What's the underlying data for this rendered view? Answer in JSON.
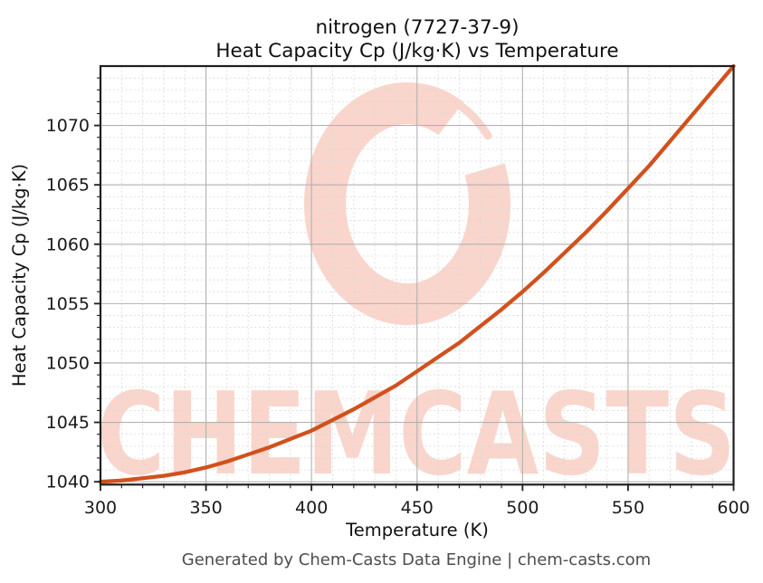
{
  "title_line1": "nitrogen (7727-37-9)",
  "title_line2": "Heat Capacity Cp (J/kg·K) vs Temperature",
  "footer": "Generated by Chem-Casts Data Engine | chem-casts.com",
  "watermark": {
    "text": "CHEMCASTS",
    "logo": "c-swoosh-logo",
    "color": "#f9d5cb"
  },
  "colors": {
    "curve": "#d1511d",
    "major_grid": "#b2b2b2",
    "minor_grid": "#dcdcdc",
    "spine": "#1f1f1f",
    "tick_label": "#1a1a1a",
    "title_text": "#111111",
    "footer_text": "#4d4d4d",
    "background": "#ffffff"
  },
  "chart_data": {
    "type": "line",
    "title": "nitrogen (7727-37-9) — Heat Capacity Cp (J/kg·K) vs Temperature",
    "xlabel": "Temperature (K)",
    "ylabel": "Heat Capacity Cp (J/kg·K)",
    "xlim": [
      300,
      600
    ],
    "ylim": [
      1039.76,
      1075.0
    ],
    "x_major_ticks": [
      300,
      350,
      400,
      450,
      500,
      550,
      600
    ],
    "y_major_ticks": [
      1040,
      1045,
      1050,
      1055,
      1060,
      1065,
      1070
    ],
    "x_minor_step": 10,
    "y_minor_step": 1,
    "grid": "major+minor",
    "legend": "none",
    "series": [
      {
        "name": "Heat Capacity Cp",
        "x": [
          300,
          310,
          320,
          330,
          340,
          350,
          360,
          370,
          380,
          390,
          400,
          410,
          420,
          430,
          440,
          450,
          460,
          470,
          480,
          490,
          500,
          510,
          520,
          530,
          540,
          550,
          560,
          570,
          580,
          590,
          600
        ],
        "y": [
          1040.0,
          1040.1,
          1040.3,
          1040.5,
          1040.8,
          1041.2,
          1041.7,
          1042.3,
          1042.9,
          1043.6,
          1044.3,
          1045.2,
          1046.1,
          1047.1,
          1048.1,
          1049.3,
          1050.5,
          1051.7,
          1053.1,
          1054.5,
          1056.0,
          1057.6,
          1059.3,
          1061.0,
          1062.8,
          1064.7,
          1066.6,
          1068.7,
          1070.8,
          1072.9,
          1075.0
        ]
      }
    ]
  }
}
